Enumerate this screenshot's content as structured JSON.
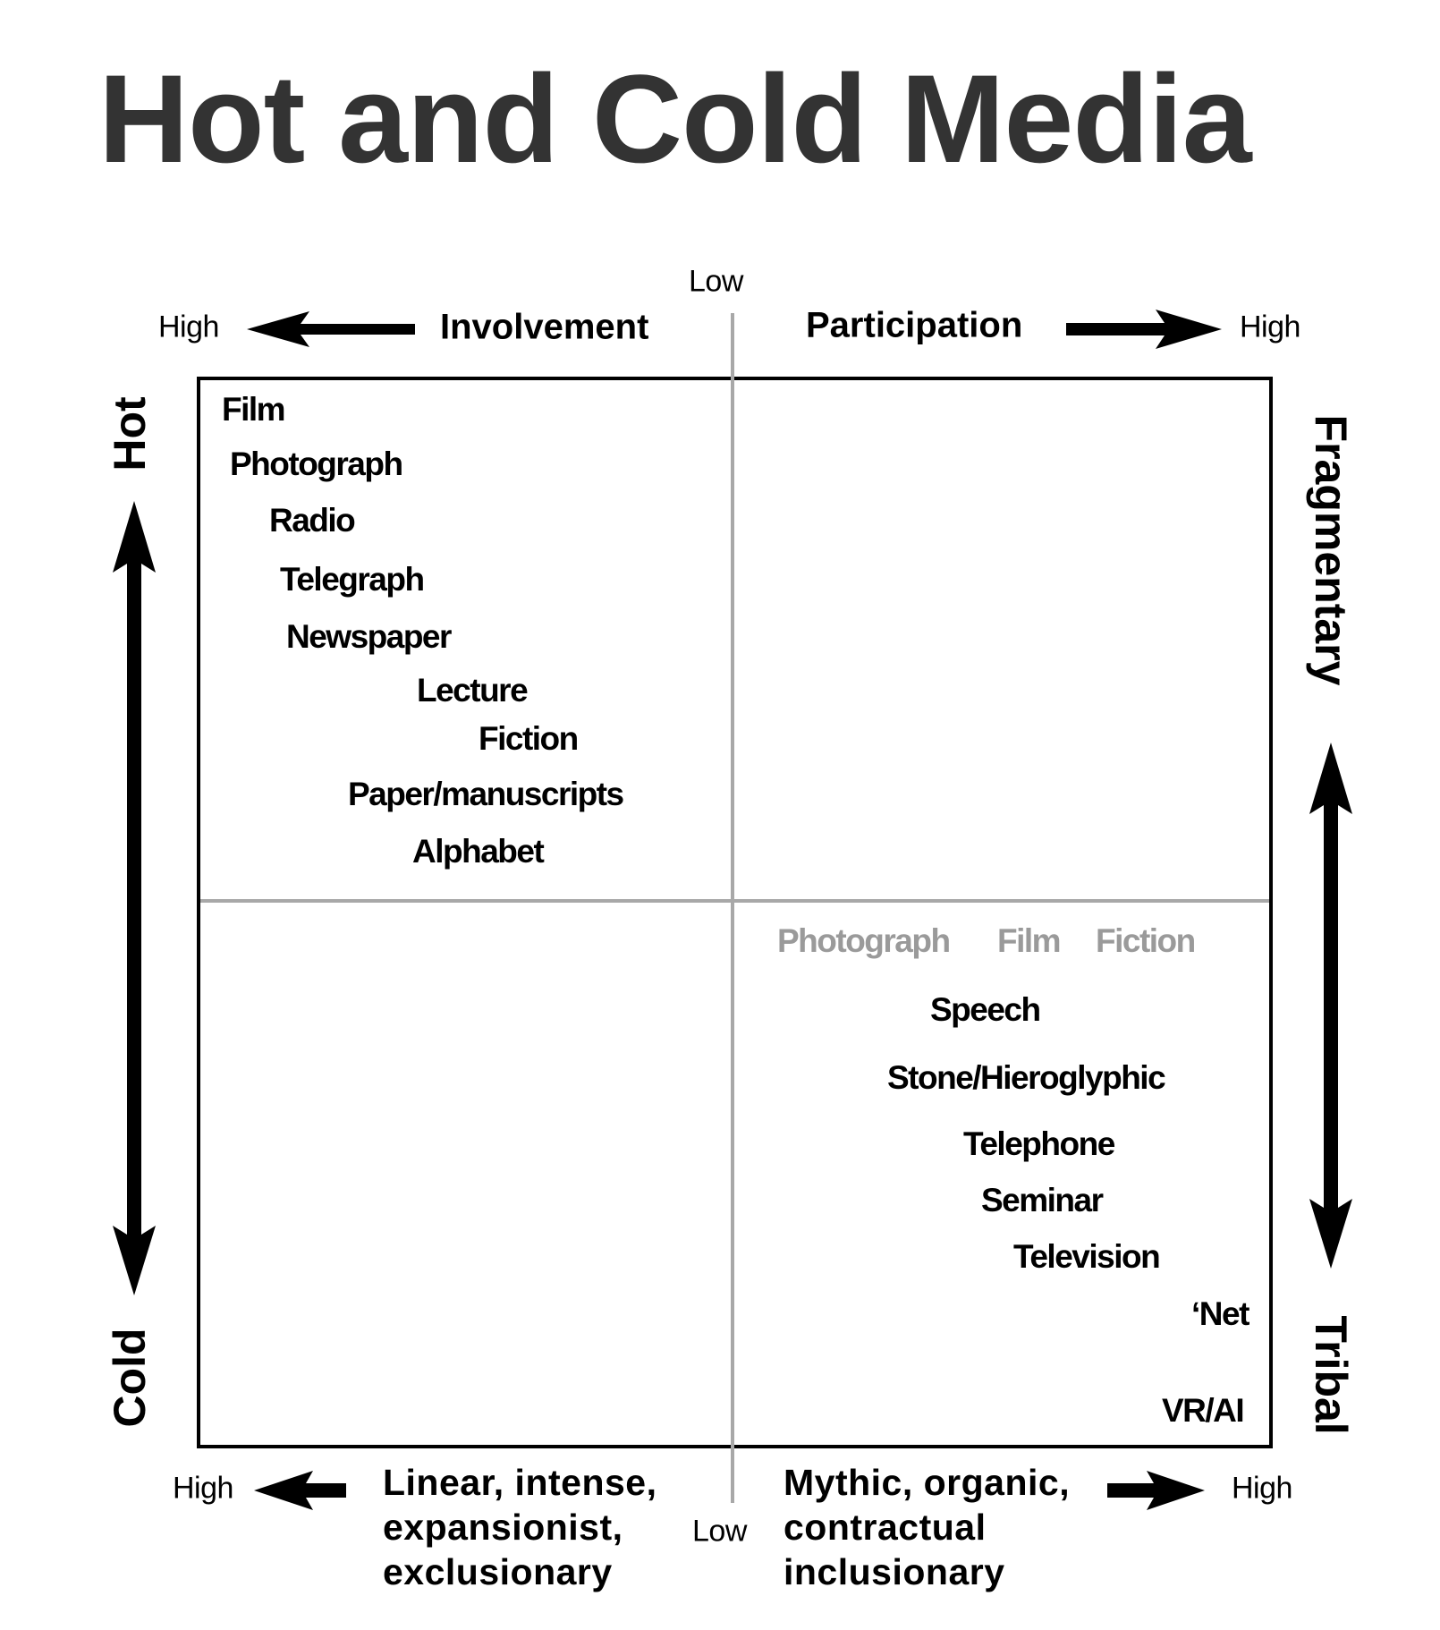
{
  "title": "Hot and Cold Media",
  "top_axis": {
    "low": "Low",
    "left_high": "High",
    "left_label": "Involvement",
    "right_label": "Participation",
    "right_high": "High"
  },
  "left_axis": {
    "top": "Hot",
    "bottom": "Cold"
  },
  "right_axis": {
    "top": "Fragmentary",
    "bottom": "Tribal"
  },
  "bottom_axis": {
    "left_high": "High",
    "left_lines": [
      "Linear, intense,",
      "expansionist,",
      "exclusionary"
    ],
    "low": "Low",
    "right_lines": [
      "Mythic, organic,",
      "contractual",
      "inclusionary"
    ],
    "right_high": "High"
  },
  "hot_media": [
    "Film",
    "Photograph",
    "Radio",
    "Telegraph",
    "Newspaper",
    "Lecture",
    "Fiction",
    "Paper/manuscripts",
    "Alphabet"
  ],
  "faded_media": [
    "Photograph",
    "Film",
    "Fiction"
  ],
  "cold_media": [
    "Speech",
    "Stone/Hieroglyphic",
    "Telephone",
    "Seminar",
    "Television",
    "‘Net",
    "VR/AI"
  ],
  "colors": {
    "title": "#333333",
    "divider": "#a8a8a8",
    "faded": "#9a9a9a"
  }
}
